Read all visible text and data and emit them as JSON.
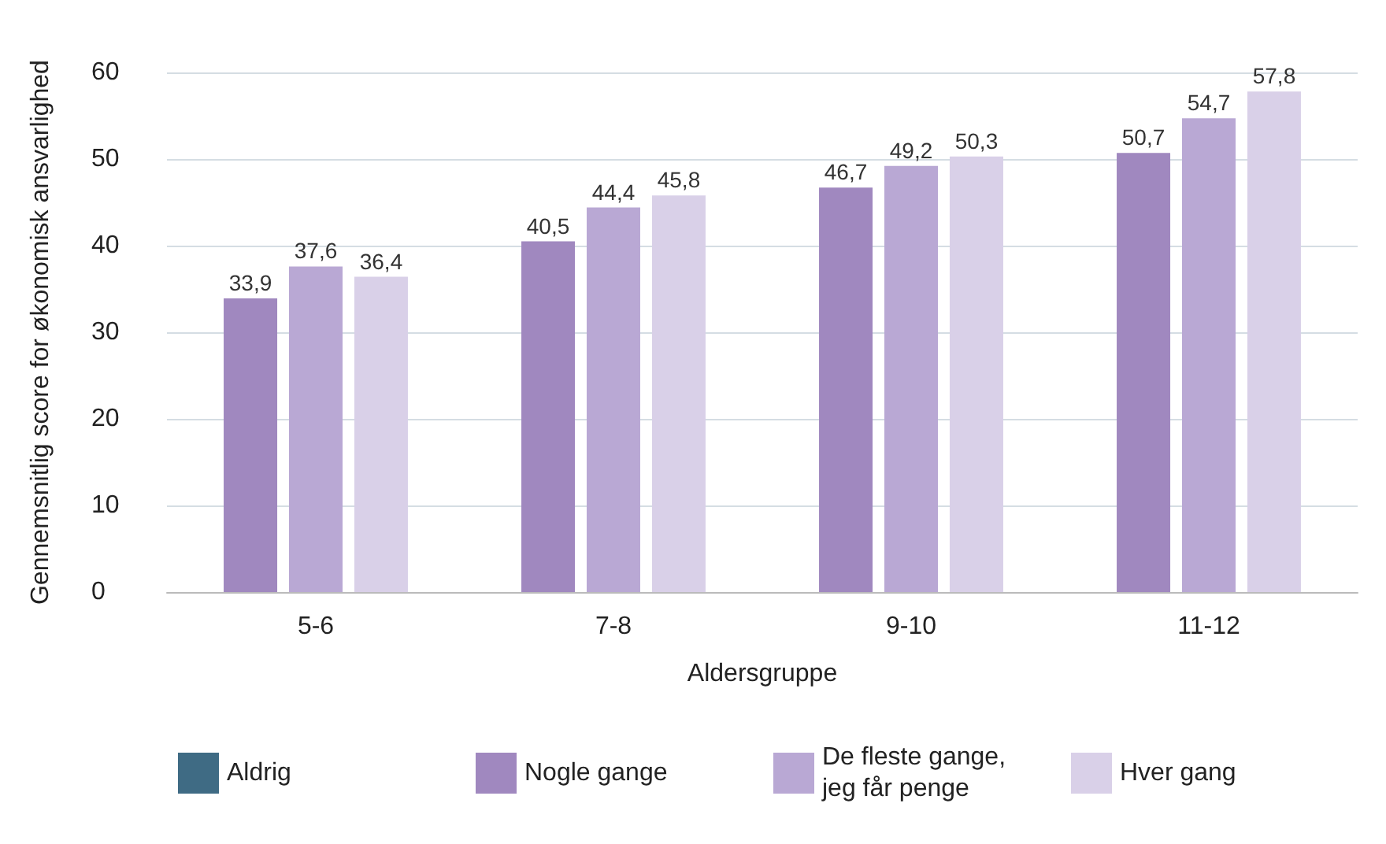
{
  "chart_data": {
    "type": "bar",
    "xlabel": "Aldersgruppe",
    "ylabel": "Gennemsnitlig score for økonomisk ansvarlighed",
    "categories": [
      "5-6",
      "7-8",
      "9-10",
      "11-12"
    ],
    "series": [
      {
        "name": "Aldrig",
        "color": "#3f6b84",
        "values": [
          null,
          null,
          null,
          null
        ]
      },
      {
        "name": "Nogle gange",
        "color": "#a088bf",
        "values": [
          33.9,
          40.5,
          46.7,
          50.7
        ],
        "value_labels": [
          "33,9",
          "40,5",
          "46,7",
          "50,7"
        ]
      },
      {
        "name": "De fleste gange, jeg får penge",
        "color": "#b9a8d4",
        "values": [
          37.6,
          44.4,
          49.2,
          54.7
        ],
        "value_labels": [
          "37,6",
          "44,4",
          "49,2",
          "54,7"
        ]
      },
      {
        "name": "Hver gang",
        "color": "#d9d0e8",
        "values": [
          36.4,
          45.8,
          50.3,
          57.8
        ],
        "value_labels": [
          "36,4",
          "45,8",
          "50,3",
          "57,8"
        ]
      }
    ],
    "ylim": [
      0,
      60
    ],
    "yticks": [
      0,
      10,
      20,
      30,
      40,
      50,
      60
    ],
    "grid": "y",
    "legend": "bottom"
  }
}
